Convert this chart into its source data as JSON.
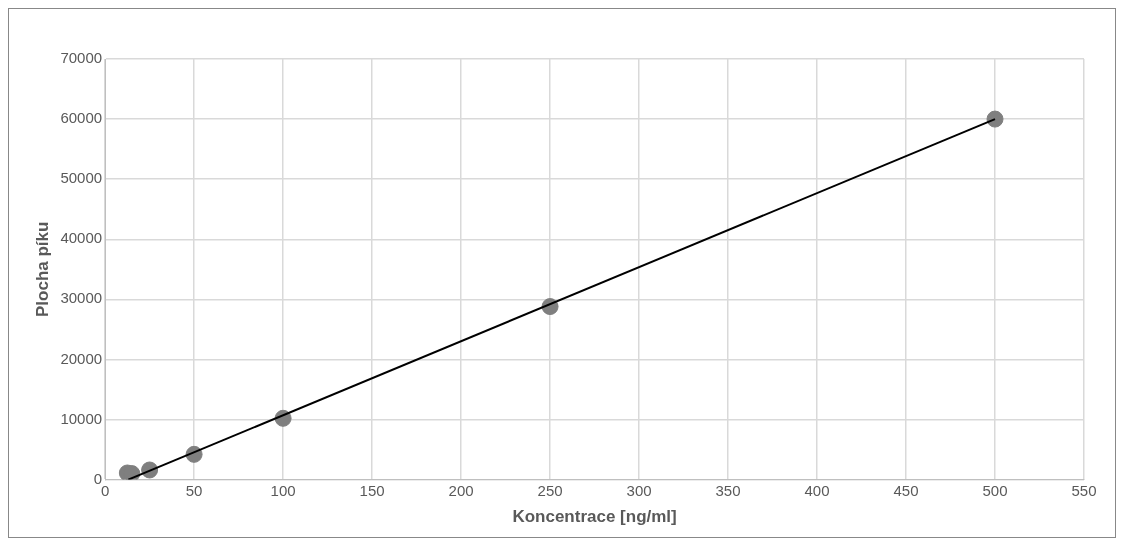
{
  "chart_data": {
    "type": "scatter",
    "xlabel": "Koncentrace [ng/ml]",
    "ylabel": "Plocha píku",
    "series": [
      {
        "color": "#7f7f7f",
        "x": [
          12.5,
          15,
          25,
          50,
          100,
          250,
          500
        ],
        "values": [
          1100,
          1000,
          1600,
          4200,
          10200,
          28800,
          60000
        ],
        "marker": "circle"
      },
      {
        "type": "line",
        "color": "#000000",
        "x": [
          13,
          500
        ],
        "values": [
          0,
          60000
        ],
        "marker": "none",
        "line_style": "solid"
      }
    ],
    "xlim": [
      0,
      550
    ],
    "xticks": [
      0,
      50,
      100,
      150,
      200,
      250,
      300,
      350,
      400,
      450,
      500,
      550
    ],
    "ylim": [
      0,
      70000
    ],
    "yticks": [
      0,
      10000,
      20000,
      30000,
      40000,
      50000,
      60000,
      70000
    ],
    "grid": true
  }
}
